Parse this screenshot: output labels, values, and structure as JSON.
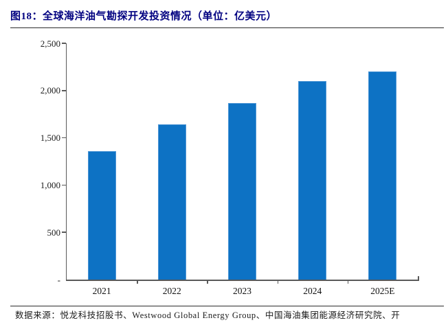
{
  "header": {
    "title": "图18：全球海洋油气勘探开发投资情况（单位：亿美元）"
  },
  "chart_data": {
    "type": "bar",
    "title": "全球海洋油气勘探开发投资情况",
    "unit": "亿美元",
    "categories": [
      "2021",
      "2022",
      "2023",
      "2024",
      "2025E"
    ],
    "values": [
      1360,
      1640,
      1870,
      2100,
      2200
    ],
    "xlabel": "",
    "ylabel": "",
    "ylim": [
      0,
      2500
    ],
    "yticks": [
      {
        "value": 2500,
        "label": "2,500"
      },
      {
        "value": 2000,
        "label": "2,000"
      },
      {
        "value": 1500,
        "label": "1,500"
      },
      {
        "value": 1000,
        "label": "1,000"
      },
      {
        "value": 500,
        "label": "500"
      },
      {
        "value": 0,
        "label": "-"
      }
    ],
    "grid": false,
    "legend": "none",
    "bar_color": "#0d72c4",
    "bar_border_color": "#4f97d6",
    "axis_color": "#595959"
  },
  "footer": {
    "source": "数据来源：悦龙科技招股书、Westwood Global Energy Group、中国海油集团能源经济研究院、开"
  },
  "colors": {
    "title_navy": "#000080",
    "rule_dark": "#2b2b2b"
  }
}
